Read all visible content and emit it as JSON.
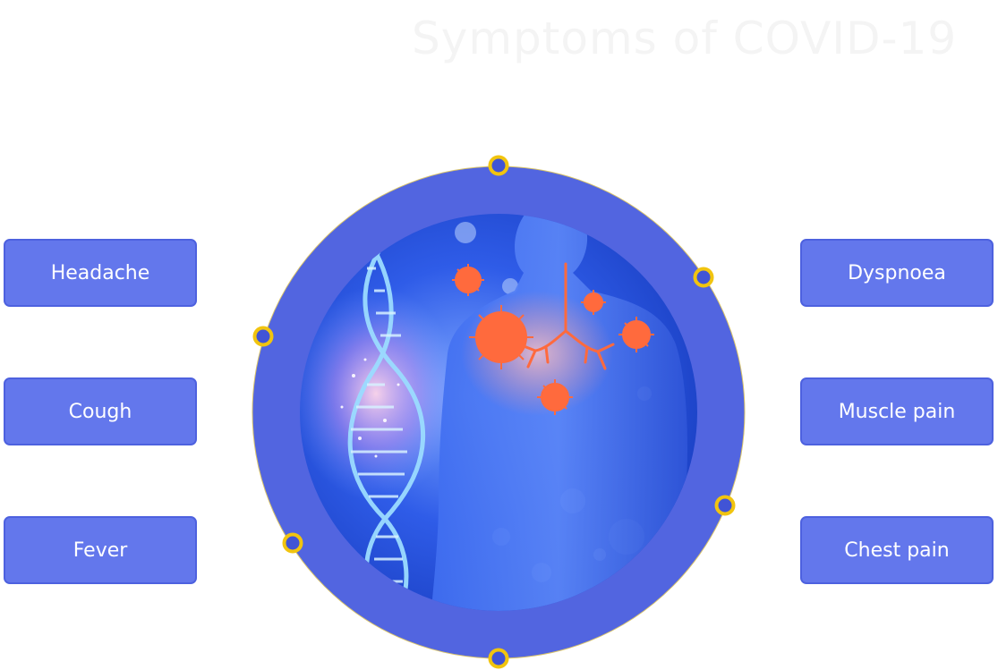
{
  "title": "Symptoms of COVID-19",
  "symptoms_left": [
    "Headache",
    "Cough",
    "Fever"
  ],
  "symptoms_right": [
    "Dyspnoea",
    "Muscle pain",
    "Chest pain"
  ],
  "colors": {
    "ring": "#5265e0",
    "box_fill": "#6377ec",
    "box_border": "#4d61df",
    "dot_ring": "#f1c40f",
    "dot_center": "#4154d6",
    "virus": "#ff6a3d"
  }
}
